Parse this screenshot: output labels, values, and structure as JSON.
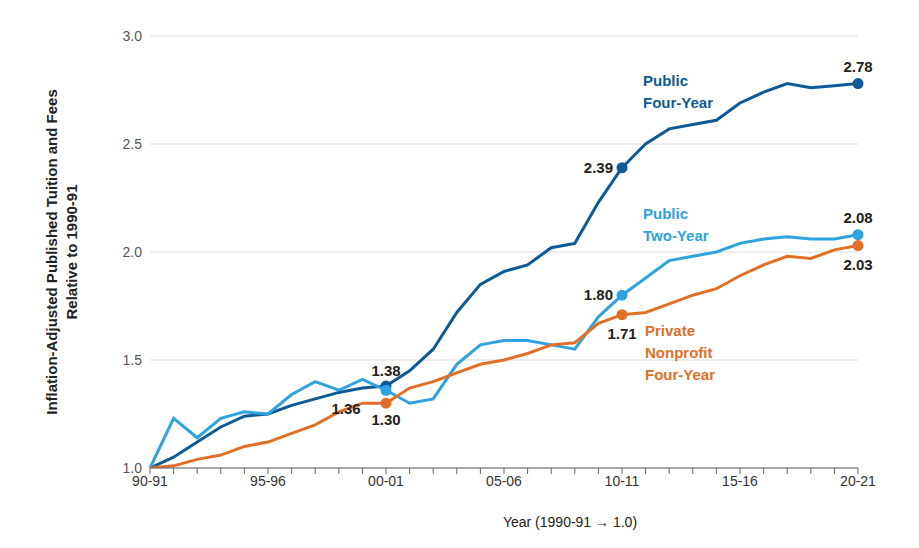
{
  "chart_data": {
    "type": "line",
    "x_label": "Year (1990-91 → 1.0)",
    "y_label": [
      "Inflation-Adjusted Published Tuition and Fees",
      "Relative to 1990-91"
    ],
    "categories": [
      "90-91",
      null,
      null,
      null,
      null,
      "95-96",
      null,
      null,
      null,
      null,
      "00-01",
      null,
      null,
      null,
      null,
      "05-06",
      null,
      null,
      null,
      null,
      "10-11",
      null,
      null,
      null,
      null,
      "15-16",
      null,
      null,
      null,
      null,
      "20-21"
    ],
    "ylim": [
      1.0,
      3.0
    ],
    "yticks": [
      {
        "value": 1.0,
        "label": "1.0"
      },
      1.5,
      {
        "value": 2.0,
        "label": "2.0"
      },
      2.5,
      {
        "value": 3.0,
        "label": "3.0"
      }
    ],
    "grid": true,
    "series": [
      {
        "name": "Public Four-Year",
        "color": "#0f5a94",
        "marker": "circle",
        "values": [
          1.0,
          1.05,
          1.12,
          1.19,
          1.24,
          1.25,
          1.29,
          1.32,
          1.35,
          1.37,
          1.38,
          1.45,
          1.55,
          1.72,
          1.85,
          1.91,
          1.94,
          2.02,
          2.04,
          2.23,
          2.39,
          2.5,
          2.57,
          2.59,
          2.61,
          2.69,
          2.74,
          2.78,
          2.76,
          2.77,
          2.78
        ],
        "value_labels": [
          null,
          null,
          null,
          null,
          null,
          null,
          null,
          null,
          null,
          null,
          "1.38",
          null,
          null,
          null,
          null,
          null,
          null,
          null,
          null,
          null,
          "2.39",
          null,
          null,
          null,
          null,
          null,
          null,
          null,
          null,
          null,
          "2.78"
        ]
      },
      {
        "name": "Public Two-Year",
        "color": "#2ea3dd",
        "marker": "circle",
        "values": [
          1.0,
          1.23,
          1.14,
          1.23,
          1.26,
          1.25,
          1.34,
          1.4,
          1.36,
          1.41,
          1.36,
          1.3,
          1.32,
          1.48,
          1.57,
          1.59,
          1.59,
          1.57,
          1.55,
          1.7,
          1.8,
          1.88,
          1.96,
          1.98,
          2.0,
          2.04,
          2.06,
          2.07,
          2.06,
          2.06,
          2.08
        ],
        "value_labels": [
          null,
          null,
          null,
          null,
          null,
          null,
          null,
          null,
          null,
          null,
          "1.36",
          null,
          null,
          null,
          null,
          null,
          null,
          null,
          null,
          null,
          "1.80",
          null,
          null,
          null,
          null,
          null,
          null,
          null,
          null,
          null,
          "2.08"
        ]
      },
      {
        "name": "Private Nonprofit Four-Year",
        "color": "#e07028",
        "marker": "circle",
        "values": [
          1.0,
          1.01,
          1.04,
          1.06,
          1.1,
          1.12,
          1.16,
          1.2,
          1.26,
          1.3,
          1.3,
          1.37,
          1.4,
          1.44,
          1.48,
          1.5,
          1.53,
          1.57,
          1.58,
          1.67,
          1.71,
          1.72,
          1.76,
          1.8,
          1.83,
          1.89,
          1.94,
          1.98,
          1.97,
          2.01,
          2.03
        ],
        "value_labels": [
          null,
          null,
          null,
          null,
          null,
          null,
          null,
          null,
          null,
          null,
          "1.30",
          null,
          null,
          null,
          null,
          null,
          null,
          null,
          null,
          null,
          "1.71",
          null,
          null,
          null,
          null,
          null,
          null,
          null,
          null,
          null,
          "2.03"
        ]
      }
    ]
  }
}
